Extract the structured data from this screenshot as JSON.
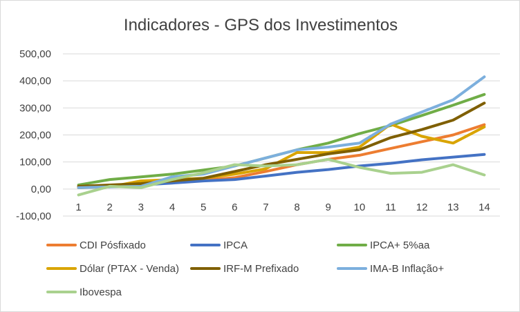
{
  "chart_data": {
    "type": "line",
    "title": "Indicadores  -  GPS dos Investimentos",
    "xlabel": "",
    "ylabel": "",
    "categories": [
      "1",
      "2",
      "3",
      "4",
      "5",
      "6",
      "7",
      "8",
      "9",
      "10",
      "11",
      "12",
      "13",
      "14"
    ],
    "ylim": [
      -100,
      500
    ],
    "yticks": [
      -100,
      0,
      100,
      200,
      300,
      400,
      500
    ],
    "ytick_labels": [
      "-100,00",
      "0,00",
      "100,00",
      "200,00",
      "300,00",
      "400,00",
      "500,00"
    ],
    "grid": true,
    "legend_position": "bottom",
    "series": [
      {
        "name": "CDI  Pósfixado",
        "color": "#ED7D31",
        "values": [
          8,
          12,
          18,
          25,
          32,
          42,
          65,
          90,
          110,
          125,
          150,
          175,
          200,
          238
        ]
      },
      {
        "name": "IPCA",
        "color": "#4472C4",
        "values": [
          5,
          10,
          15,
          22,
          30,
          35,
          48,
          62,
          72,
          85,
          95,
          108,
          118,
          128
        ]
      },
      {
        "name": "IPCA+    5%aa",
        "color": "#70AD47",
        "values": [
          15,
          35,
          45,
          55,
          70,
          85,
          115,
          145,
          170,
          205,
          235,
          272,
          310,
          350
        ]
      },
      {
        "name": "Dólar (PTAX - Venda)",
        "color": "#D9A400",
        "values": [
          5,
          8,
          30,
          35,
          40,
          55,
          75,
          135,
          135,
          155,
          240,
          195,
          170,
          230
        ]
      },
      {
        "name": "IRF-M Prefixado",
        "color": "#7F5F00",
        "values": [
          10,
          15,
          20,
          30,
          40,
          65,
          90,
          110,
          130,
          145,
          190,
          220,
          255,
          318
        ]
      },
      {
        "name": "IMA-B Inflação+",
        "color": "#7CAFDD",
        "values": [
          5,
          8,
          10,
          45,
          55,
          85,
          115,
          145,
          155,
          170,
          240,
          285,
          330,
          415
        ]
      },
      {
        "name": "Ibovespa",
        "color": "#A9D18E",
        "values": [
          -22,
          10,
          5,
          35,
          60,
          90,
          85,
          90,
          110,
          80,
          58,
          62,
          90,
          52
        ]
      }
    ]
  }
}
